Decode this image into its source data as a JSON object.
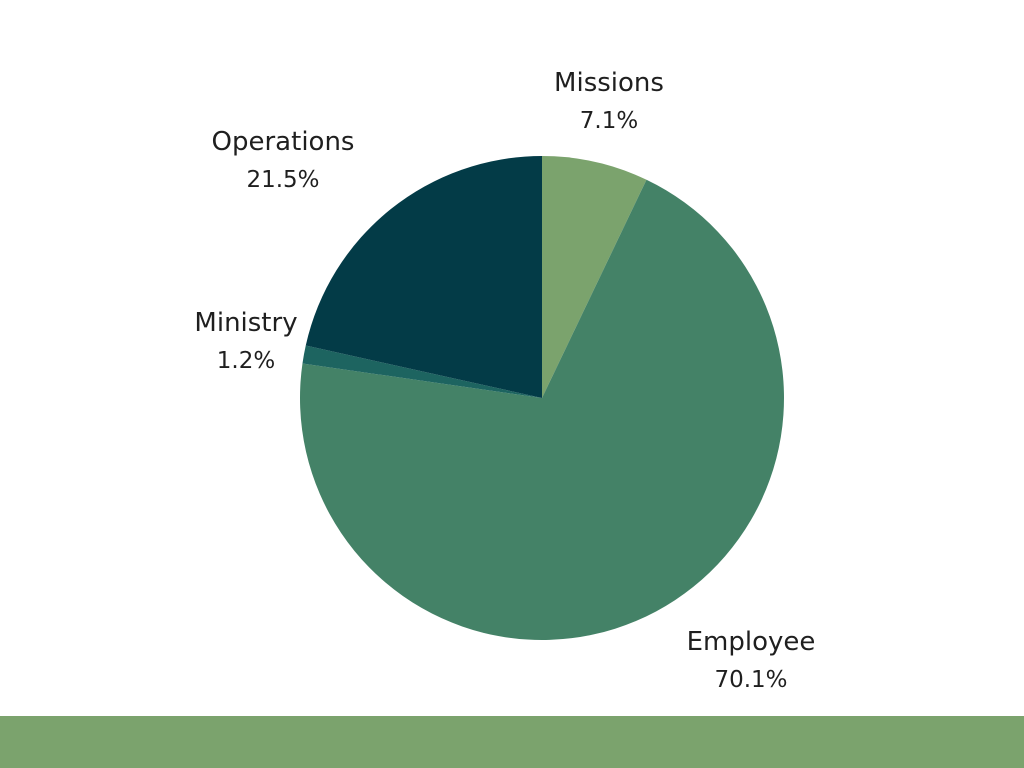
{
  "chart_data": {
    "type": "pie",
    "start_angle_deg": 0,
    "direction": "clockwise",
    "slices": [
      {
        "name": "Missions",
        "value": 7.1,
        "label": "7.1%",
        "color": "#7ba36d"
      },
      {
        "name": "Employee",
        "value": 70.1,
        "label": "70.1%",
        "color": "#448267"
      },
      {
        "name": "Ministry",
        "value": 1.2,
        "label": "1.2%",
        "color": "#1d6460"
      },
      {
        "name": "Operations",
        "value": 21.5,
        "label": "21.5%",
        "color": "#033b47"
      }
    ]
  },
  "footer": {
    "color": "#7ba36d"
  }
}
